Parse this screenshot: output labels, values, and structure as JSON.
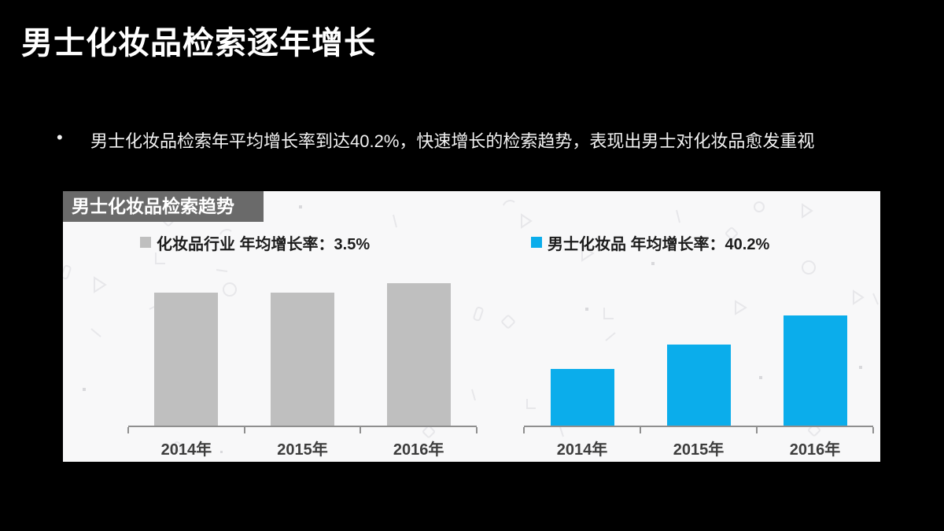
{
  "slide": {
    "title": "男士化妆品检索逐年增长",
    "bullet_marker": "•",
    "bullet": "男士化妆品检索年平均增长率到达40.2%，快速增长的检索趋势，表现出男士对化妆品愈发重视"
  },
  "panel": {
    "header": "男士化妆品检索趋势"
  },
  "colors": {
    "slide_background": "#000000",
    "panel_background": "#f8f8f9",
    "header_box": "#6a6a6a",
    "industry_gray": "#bfbfbf",
    "men_blue": "#0badeb",
    "axis": "#8f8f8f"
  },
  "chart_data": [
    {
      "type": "bar",
      "series_name": "化妆品行业",
      "legend": "化妆品行业 年均增长率：3.5%",
      "avg_growth_rate": "3.5%",
      "categories": [
        "2014年",
        "2015年",
        "2016年"
      ],
      "values": [
        169,
        169,
        181
      ],
      "ymax": 210,
      "values_note": "relative bar heights (no y-axis scale shown in chart)",
      "bar_color": "#bfbfbf",
      "legend_position": "top",
      "grid": false
    },
    {
      "type": "bar",
      "series_name": "男士化妆品",
      "legend": "男士化妆品 年均增长率：40.2%",
      "avg_growth_rate": "40.2%",
      "categories": [
        "2014年",
        "2015年",
        "2016年"
      ],
      "values": [
        72,
        103,
        140
      ],
      "ymax": 210,
      "values_note": "relative bar heights (no y-axis scale shown in chart)",
      "bar_color": "#0badeb",
      "legend_position": "top",
      "grid": false
    }
  ]
}
